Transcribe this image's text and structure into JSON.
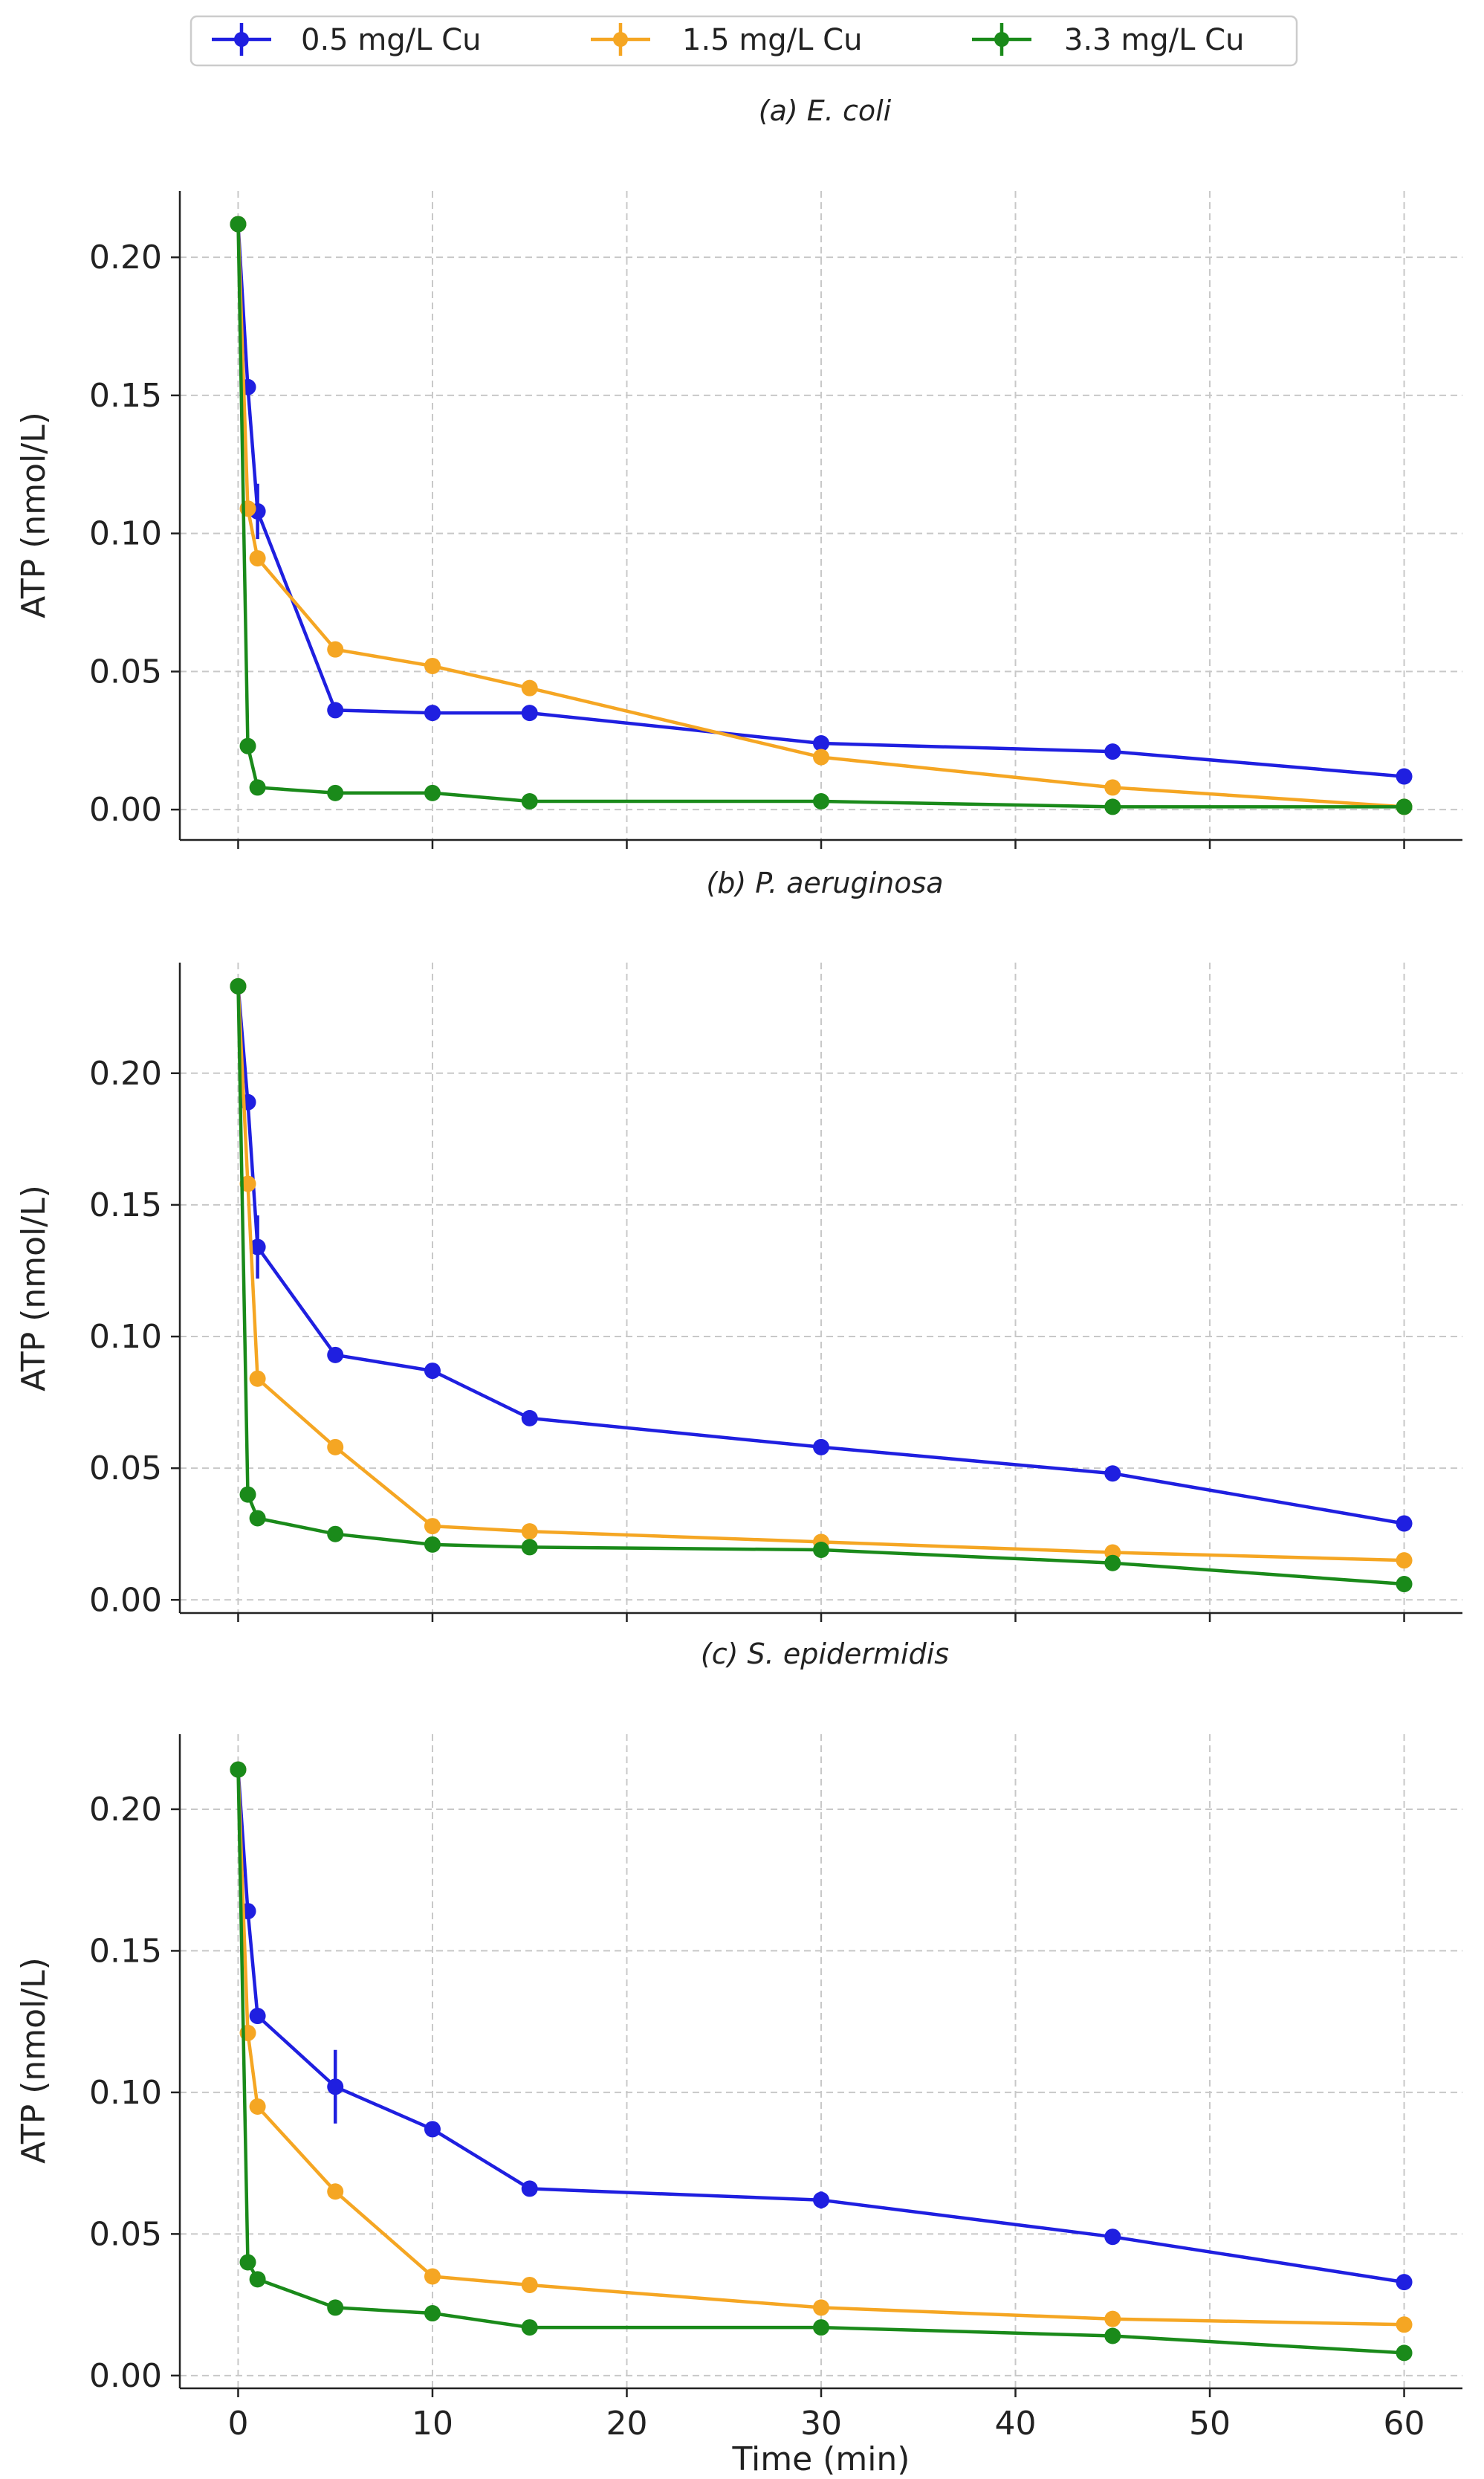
{
  "legend": {
    "entries": [
      {
        "label": "0.5 mg/L Cu",
        "color": "#1f1fe0"
      },
      {
        "label": "1.5 mg/L Cu",
        "color": "#f5a623"
      },
      {
        "label": "3.3 mg/L Cu",
        "color": "#1a8a1a"
      }
    ]
  },
  "chart_data": [
    {
      "type": "line",
      "title": "(a) E. coli",
      "xlabel": "",
      "ylabel": "ATP (nmol/L)",
      "xlim": [
        -3,
        63
      ],
      "ylim": [
        -0.011,
        0.224
      ],
      "xticks": [
        0,
        10,
        20,
        30,
        40,
        50,
        60
      ],
      "xtick_labels": [],
      "yticks": [
        0.0,
        0.05,
        0.1,
        0.15,
        0.2
      ],
      "ytick_labels": [
        "0.00",
        "0.05",
        "0.10",
        "0.15",
        "0.20"
      ],
      "grid": true,
      "x": [
        0,
        0.5,
        1,
        5,
        10,
        15,
        30,
        45,
        60
      ],
      "series": [
        {
          "name": "0.5 mg/L Cu",
          "color": "#1f1fe0",
          "values": [
            0.212,
            0.153,
            0.108,
            0.036,
            0.035,
            0.035,
            0.024,
            0.021,
            0.012
          ],
          "errors": [
            0,
            0,
            0.01,
            0,
            0,
            0,
            0,
            0,
            0
          ]
        },
        {
          "name": "1.5 mg/L Cu",
          "color": "#f5a623",
          "values": [
            0.212,
            0.109,
            0.091,
            0.058,
            0.052,
            0.044,
            0.019,
            0.008,
            0.001
          ],
          "errors": [
            0,
            0,
            0,
            0,
            0,
            0,
            0,
            0,
            0
          ]
        },
        {
          "name": "3.3 mg/L Cu",
          "color": "#1a8a1a",
          "values": [
            0.212,
            0.023,
            0.008,
            0.006,
            0.006,
            0.003,
            0.003,
            0.001,
            0.001
          ],
          "errors": [
            0,
            0,
            0,
            0,
            0,
            0,
            0,
            0,
            0
          ]
        }
      ]
    },
    {
      "type": "line",
      "title": "(b) P. aeruginosa",
      "xlabel": "",
      "ylabel": "ATP (nmol/L)",
      "xlim": [
        -3,
        63
      ],
      "ylim": [
        -0.005,
        0.242
      ],
      "xticks": [
        0,
        10,
        20,
        30,
        40,
        50,
        60
      ],
      "xtick_labels": [],
      "yticks": [
        0.0,
        0.05,
        0.1,
        0.15,
        0.2
      ],
      "ytick_labels": [
        "0.00",
        "0.05",
        "0.10",
        "0.15",
        "0.20"
      ],
      "grid": true,
      "x": [
        0,
        0.5,
        1,
        5,
        10,
        15,
        30,
        45,
        60
      ],
      "series": [
        {
          "name": "0.5 mg/L Cu",
          "color": "#1f1fe0",
          "values": [
            0.233,
            0.189,
            0.134,
            0.093,
            0.087,
            0.069,
            0.058,
            0.048,
            0.029
          ],
          "errors": [
            0,
            0,
            0.012,
            0,
            0,
            0,
            0,
            0,
            0
          ]
        },
        {
          "name": "1.5 mg/L Cu",
          "color": "#f5a623",
          "values": [
            0.233,
            0.158,
            0.084,
            0.058,
            0.028,
            0.026,
            0.022,
            0.018,
            0.015
          ],
          "errors": [
            0,
            0,
            0,
            0,
            0,
            0,
            0,
            0,
            0
          ]
        },
        {
          "name": "3.3 mg/L Cu",
          "color": "#1a8a1a",
          "values": [
            0.233,
            0.04,
            0.031,
            0.025,
            0.021,
            0.02,
            0.019,
            0.014,
            0.006
          ],
          "errors": [
            0,
            0,
            0,
            0,
            0,
            0,
            0,
            0,
            0
          ]
        }
      ]
    },
    {
      "type": "line",
      "title": "(c) S. epidermidis",
      "xlabel": "Time (min)",
      "ylabel": "ATP (nmol/L)",
      "xlim": [
        -3,
        63
      ],
      "ylim": [
        -0.0045,
        0.2265
      ],
      "xticks": [
        0,
        10,
        20,
        30,
        40,
        50,
        60
      ],
      "xtick_labels": [
        "0",
        "10",
        "20",
        "30",
        "40",
        "50",
        "60"
      ],
      "yticks": [
        0.0,
        0.05,
        0.1,
        0.15,
        0.2
      ],
      "ytick_labels": [
        "0.00",
        "0.05",
        "0.10",
        "0.15",
        "0.20"
      ],
      "grid": true,
      "x": [
        0,
        0.5,
        1,
        5,
        10,
        15,
        30,
        45,
        60
      ],
      "series": [
        {
          "name": "0.5 mg/L Cu",
          "color": "#1f1fe0",
          "values": [
            0.214,
            0.164,
            0.127,
            0.102,
            0.087,
            0.066,
            0.062,
            0.049,
            0.033
          ],
          "errors": [
            0,
            0,
            0,
            0.013,
            0,
            0,
            0.003,
            0,
            0
          ]
        },
        {
          "name": "1.5 mg/L Cu",
          "color": "#f5a623",
          "values": [
            0.214,
            0.121,
            0.095,
            0.065,
            0.035,
            0.032,
            0.024,
            0.02,
            0.018
          ],
          "errors": [
            0,
            0,
            0,
            0,
            0,
            0,
            0,
            0,
            0
          ]
        },
        {
          "name": "3.3 mg/L Cu",
          "color": "#1a8a1a",
          "values": [
            0.214,
            0.04,
            0.034,
            0.024,
            0.022,
            0.017,
            0.017,
            0.014,
            0.008
          ],
          "errors": [
            0,
            0,
            0,
            0,
            0,
            0,
            0,
            0,
            0
          ]
        }
      ]
    }
  ]
}
